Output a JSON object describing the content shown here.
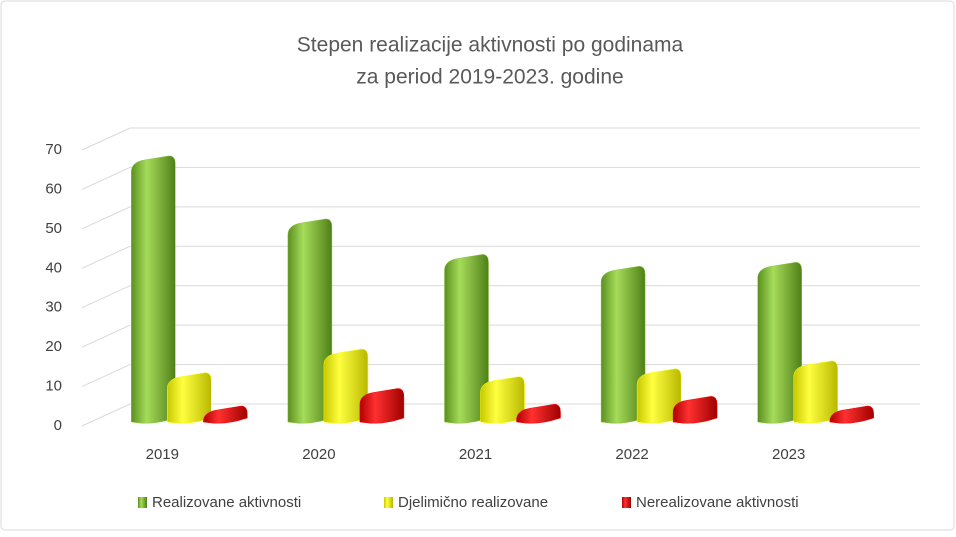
{
  "chart_data": {
    "type": "bar3d",
    "title": [
      "Stepen realizacije aktivnosti po godinama",
      "za period 2019-2023. godine"
    ],
    "categories": [
      "2019",
      "2020",
      "2021",
      "2022",
      "2023"
    ],
    "series": [
      {
        "name": "Realizovane aktivnosti",
        "color": "#8cc63f",
        "values": [
          67,
          51,
          42,
          39,
          40
        ]
      },
      {
        "name": "Djelimično realizovane",
        "color": "#ffff00",
        "values": [
          12,
          18,
          11,
          13,
          15
        ]
      },
      {
        "name": "Nerealizovane aktivnosti",
        "color": "#ff0000",
        "values": [
          1,
          8,
          4,
          6,
          3
        ]
      }
    ],
    "ylim": [
      0,
      70
    ],
    "yticks": [
      0,
      10,
      20,
      30,
      40,
      50,
      60,
      70
    ],
    "grid": true,
    "legend": "bottom"
  }
}
